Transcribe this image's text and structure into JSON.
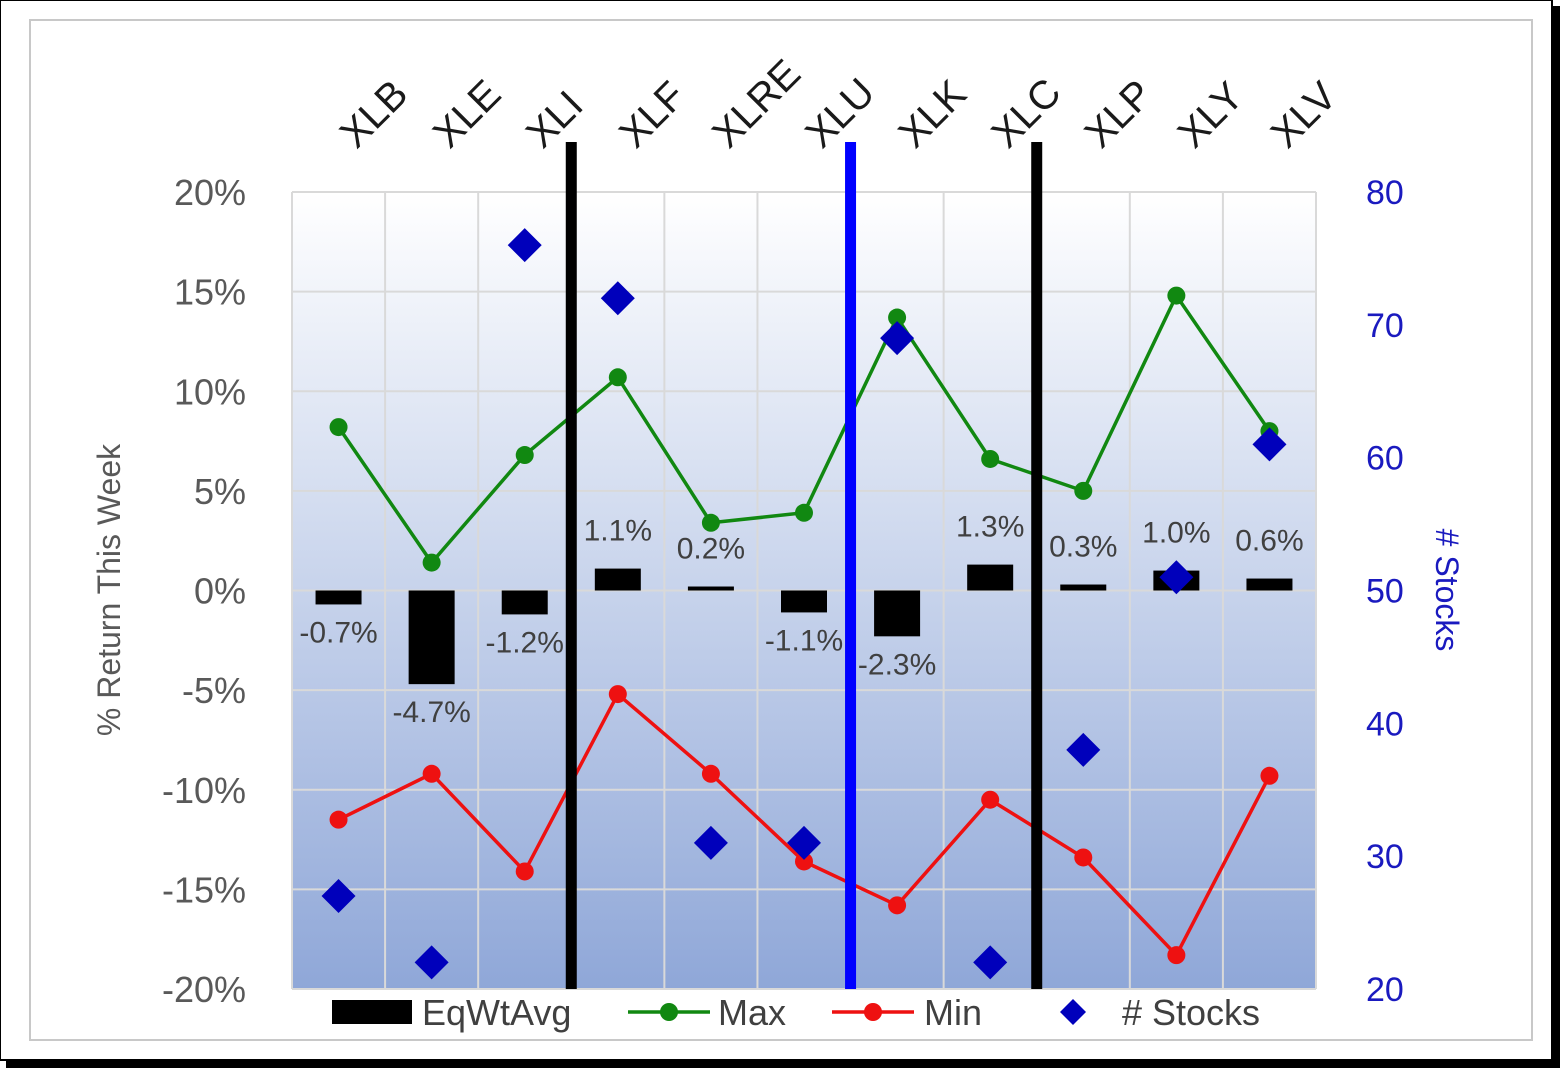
{
  "chart_data": {
    "type": "bar+line+scatter",
    "categories": [
      "XLB",
      "XLE",
      "XLI",
      "XLF",
      "XLRE",
      "XLU",
      "XLK",
      "XLC",
      "XLP",
      "XLY",
      "XLV"
    ],
    "series": [
      {
        "name": "EqWtAvg",
        "type": "bar",
        "values": [
          -0.7,
          -4.7,
          -1.2,
          1.1,
          0.2,
          -1.1,
          -2.3,
          1.3,
          0.3,
          1.0,
          0.6
        ],
        "labels": [
          "-0.7%",
          "-4.7%",
          "-1.2%",
          "1.1%",
          "0.2%",
          "-1.1%",
          "-2.3%",
          "1.3%",
          "0.3%",
          "1.0%",
          "0.6%"
        ]
      },
      {
        "name": "Max",
        "type": "line",
        "values": [
          8.2,
          1.4,
          6.8,
          10.7,
          3.4,
          3.9,
          13.7,
          6.6,
          5.0,
          14.8,
          8.0
        ]
      },
      {
        "name": "Min",
        "type": "line",
        "values": [
          -11.5,
          -9.2,
          -14.1,
          -5.2,
          -9.2,
          -13.6,
          -15.8,
          -10.5,
          -13.4,
          -18.3,
          -9.3
        ]
      },
      {
        "name": "# Stocks",
        "type": "scatter",
        "axis": "secondary",
        "values": [
          27,
          22,
          76,
          72,
          31,
          31,
          69,
          22,
          38,
          51,
          61
        ]
      }
    ],
    "ylabel": "% Return This Week",
    "y2label": "# Stocks",
    "ylim": [
      -20,
      20
    ],
    "y2lim": [
      20,
      80
    ],
    "yticks": [
      "20%",
      "15%",
      "10%",
      "5%",
      "0%",
      "-5%",
      "-10%",
      "-15%",
      "-20%"
    ],
    "y2ticks": [
      "80",
      "70",
      "60",
      "50",
      "40",
      "30",
      "20"
    ],
    "separators": [
      {
        "after_category": "XLI",
        "color": "#000000"
      },
      {
        "after_category": "XLU",
        "color": "#0000ff"
      },
      {
        "after_category": "XLC",
        "color": "#000000"
      }
    ],
    "legend": [
      "EqWtAvg",
      "Max",
      "Min",
      "# Stocks"
    ],
    "legend_position": "bottom",
    "colors": {
      "bar": "#000000",
      "max": "#118811",
      "min": "#ee1111",
      "stocks": "#0000bb",
      "secondary_axis": "#1a1abf",
      "bg_top": "#ffffff",
      "bg_bottom": "#8fa7d8"
    }
  }
}
